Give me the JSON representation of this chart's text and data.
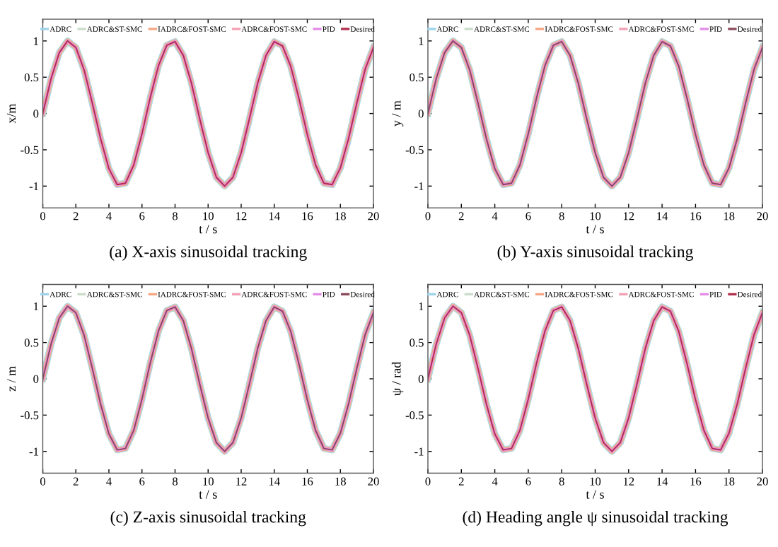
{
  "chart_data": [
    {
      "type": "line",
      "title": "(a) X-axis sinusoidal tracking",
      "xlabel": "t / s",
      "ylabel": "x/m",
      "xlim": [
        0,
        20
      ],
      "ylim": [
        -1.3,
        1.3
      ],
      "xticks": [
        0,
        2,
        4,
        6,
        8,
        10,
        12,
        14,
        16,
        18,
        20
      ],
      "yticks": [
        -1,
        -0.5,
        0,
        0.5,
        1
      ],
      "legend": "top",
      "grid": false,
      "x": [
        0,
        0.5,
        1,
        1.5,
        2,
        2.5,
        3,
        3.5,
        4,
        4.5,
        5,
        5.5,
        6,
        6.5,
        7,
        7.5,
        8,
        8.5,
        9,
        9.5,
        10,
        10.5,
        11,
        11.5,
        12,
        12.5,
        13,
        13.5,
        14,
        14.5,
        15,
        15.5,
        16,
        16.5,
        17,
        17.5,
        18,
        18.5,
        19,
        19.5,
        20
      ],
      "series": [
        {
          "name": "ADRC",
          "color": "#9fd3ea",
          "values": [
            0,
            0.48,
            0.84,
            1.0,
            0.91,
            0.6,
            0.14,
            -0.35,
            -0.76,
            -0.98,
            -0.96,
            -0.71,
            -0.28,
            0.22,
            0.66,
            0.94,
            0.99,
            0.8,
            0.41,
            -0.08,
            -0.54,
            -0.88,
            -1.0,
            -0.88,
            -0.54,
            -0.07,
            0.42,
            0.8,
            0.99,
            0.93,
            0.65,
            0.2,
            -0.29,
            -0.71,
            -0.96,
            -0.98,
            -0.75,
            -0.34,
            0.15,
            0.61,
            0.91
          ]
        },
        {
          "name": "ADRC&ST-SMC",
          "color": "#c9dcc9",
          "values": [
            0,
            0.48,
            0.84,
            1.0,
            0.91,
            0.6,
            0.14,
            -0.35,
            -0.76,
            -0.98,
            -0.96,
            -0.71,
            -0.28,
            0.22,
            0.66,
            0.94,
            0.99,
            0.8,
            0.41,
            -0.08,
            -0.54,
            -0.88,
            -1.0,
            -0.88,
            -0.54,
            -0.07,
            0.42,
            0.8,
            0.99,
            0.93,
            0.65,
            0.2,
            -0.29,
            -0.71,
            -0.96,
            -0.98,
            -0.75,
            -0.34,
            0.15,
            0.61,
            0.91
          ]
        },
        {
          "name": "IADRC&FOST-SMC",
          "color": "#f4a582",
          "values": [
            0,
            0.48,
            0.84,
            1.0,
            0.91,
            0.6,
            0.14,
            -0.35,
            -0.76,
            -0.98,
            -0.96,
            -0.71,
            -0.28,
            0.22,
            0.66,
            0.94,
            0.99,
            0.8,
            0.41,
            -0.08,
            -0.54,
            -0.88,
            -1.0,
            -0.88,
            -0.54,
            -0.07,
            0.42,
            0.8,
            0.99,
            0.93,
            0.65,
            0.2,
            -0.29,
            -0.71,
            -0.96,
            -0.98,
            -0.75,
            -0.34,
            0.15,
            0.61,
            0.91
          ]
        },
        {
          "name": "ADRC&FOST-SMC",
          "color": "#f2a0b4",
          "values": [
            0,
            0.48,
            0.84,
            1.0,
            0.91,
            0.6,
            0.14,
            -0.35,
            -0.76,
            -0.98,
            -0.96,
            -0.71,
            -0.28,
            0.22,
            0.66,
            0.94,
            0.99,
            0.8,
            0.41,
            -0.08,
            -0.54,
            -0.88,
            -1.0,
            -0.88,
            -0.54,
            -0.07,
            0.42,
            0.8,
            0.99,
            0.93,
            0.65,
            0.2,
            -0.29,
            -0.71,
            -0.96,
            -0.98,
            -0.75,
            -0.34,
            0.15,
            0.61,
            0.91
          ]
        },
        {
          "name": "PID",
          "color": "#e48be8",
          "values": [
            0,
            0.48,
            0.84,
            1.0,
            0.91,
            0.6,
            0.14,
            -0.35,
            -0.76,
            -0.98,
            -0.96,
            -0.71,
            -0.28,
            0.22,
            0.66,
            0.94,
            0.99,
            0.8,
            0.41,
            -0.08,
            -0.54,
            -0.88,
            -1.0,
            -0.88,
            -0.54,
            -0.07,
            0.42,
            0.8,
            0.99,
            0.93,
            0.65,
            0.2,
            -0.29,
            -0.71,
            -0.96,
            -0.98,
            -0.75,
            -0.34,
            0.15,
            0.61,
            0.91
          ]
        },
        {
          "name": "Desired",
          "color": "#b0304e",
          "values": [
            0,
            0.48,
            0.84,
            1.0,
            0.91,
            0.6,
            0.14,
            -0.35,
            -0.76,
            -0.98,
            -0.96,
            -0.71,
            -0.28,
            0.22,
            0.66,
            0.94,
            0.99,
            0.8,
            0.41,
            -0.08,
            -0.54,
            -0.88,
            -1.0,
            -0.88,
            -0.54,
            -0.07,
            0.42,
            0.8,
            0.99,
            0.93,
            0.65,
            0.2,
            -0.29,
            -0.71,
            -0.96,
            -0.98,
            -0.75,
            -0.34,
            0.15,
            0.61,
            0.91
          ]
        }
      ]
    },
    {
      "type": "line",
      "title": "(b) Y-axis sinusoidal tracking",
      "xlabel": "t / s",
      "ylabel": "y / m",
      "xlim": [
        0,
        20
      ],
      "ylim": [
        -1.3,
        1.3
      ],
      "xticks": [
        0,
        2,
        4,
        6,
        8,
        10,
        12,
        14,
        16,
        18,
        20
      ],
      "yticks": [
        -1,
        -0.5,
        0,
        0.5,
        1
      ],
      "legend": "top",
      "grid": false,
      "x": [
        0,
        0.5,
        1,
        1.5,
        2,
        2.5,
        3,
        3.5,
        4,
        4.5,
        5,
        5.5,
        6,
        6.5,
        7,
        7.5,
        8,
        8.5,
        9,
        9.5,
        10,
        10.5,
        11,
        11.5,
        12,
        12.5,
        13,
        13.5,
        14,
        14.5,
        15,
        15.5,
        16,
        16.5,
        17,
        17.5,
        18,
        18.5,
        19,
        19.5,
        20
      ],
      "series": [
        {
          "name": "ADRC",
          "color": "#9fd3ea",
          "values": [
            0,
            0.48,
            0.84,
            1.0,
            0.91,
            0.6,
            0.14,
            -0.35,
            -0.76,
            -0.98,
            -0.96,
            -0.71,
            -0.28,
            0.22,
            0.66,
            0.94,
            0.99,
            0.8,
            0.41,
            -0.08,
            -0.54,
            -0.88,
            -1.0,
            -0.88,
            -0.54,
            -0.07,
            0.42,
            0.8,
            0.99,
            0.93,
            0.65,
            0.2,
            -0.29,
            -0.71,
            -0.96,
            -0.98,
            -0.75,
            -0.34,
            0.15,
            0.61,
            0.91
          ]
        },
        {
          "name": "ADRC&ST-SMC",
          "color": "#c9dcc9",
          "values": [
            0,
            0.48,
            0.84,
            1.0,
            0.91,
            0.6,
            0.14,
            -0.35,
            -0.76,
            -0.98,
            -0.96,
            -0.71,
            -0.28,
            0.22,
            0.66,
            0.94,
            0.99,
            0.8,
            0.41,
            -0.08,
            -0.54,
            -0.88,
            -1.0,
            -0.88,
            -0.54,
            -0.07,
            0.42,
            0.8,
            0.99,
            0.93,
            0.65,
            0.2,
            -0.29,
            -0.71,
            -0.96,
            -0.98,
            -0.75,
            -0.34,
            0.15,
            0.61,
            0.91
          ]
        },
        {
          "name": "IADRC&FOST-SMC",
          "color": "#f4a582",
          "values": [
            0,
            0.48,
            0.84,
            1.0,
            0.91,
            0.6,
            0.14,
            -0.35,
            -0.76,
            -0.98,
            -0.96,
            -0.71,
            -0.28,
            0.22,
            0.66,
            0.94,
            0.99,
            0.8,
            0.41,
            -0.08,
            -0.54,
            -0.88,
            -1.0,
            -0.88,
            -0.54,
            -0.07,
            0.42,
            0.8,
            0.99,
            0.93,
            0.65,
            0.2,
            -0.29,
            -0.71,
            -0.96,
            -0.98,
            -0.75,
            -0.34,
            0.15,
            0.61,
            0.91
          ]
        },
        {
          "name": "ADRC&FOST-SMC",
          "color": "#f2a0b4",
          "values": [
            0,
            0.48,
            0.84,
            1.0,
            0.91,
            0.6,
            0.14,
            -0.35,
            -0.76,
            -0.98,
            -0.96,
            -0.71,
            -0.28,
            0.22,
            0.66,
            0.94,
            0.99,
            0.8,
            0.41,
            -0.08,
            -0.54,
            -0.88,
            -1.0,
            -0.88,
            -0.54,
            -0.07,
            0.42,
            0.8,
            0.99,
            0.93,
            0.65,
            0.2,
            -0.29,
            -0.71,
            -0.96,
            -0.98,
            -0.75,
            -0.34,
            0.15,
            0.61,
            0.91
          ]
        },
        {
          "name": "PID",
          "color": "#e48be8",
          "values": [
            0,
            0.48,
            0.84,
            1.0,
            0.91,
            0.6,
            0.14,
            -0.35,
            -0.76,
            -0.98,
            -0.96,
            -0.71,
            -0.28,
            0.22,
            0.66,
            0.94,
            0.99,
            0.8,
            0.41,
            -0.08,
            -0.54,
            -0.88,
            -1.0,
            -0.88,
            -0.54,
            -0.07,
            0.42,
            0.8,
            0.99,
            0.93,
            0.65,
            0.2,
            -0.29,
            -0.71,
            -0.96,
            -0.98,
            -0.75,
            -0.34,
            0.15,
            0.61,
            0.91
          ]
        },
        {
          "name": "Desired",
          "color": "#8a4a5a",
          "values": [
            0,
            0.48,
            0.84,
            1.0,
            0.91,
            0.6,
            0.14,
            -0.35,
            -0.76,
            -0.98,
            -0.96,
            -0.71,
            -0.28,
            0.22,
            0.66,
            0.94,
            0.99,
            0.8,
            0.41,
            -0.08,
            -0.54,
            -0.88,
            -1.0,
            -0.88,
            -0.54,
            -0.07,
            0.42,
            0.8,
            0.99,
            0.93,
            0.65,
            0.2,
            -0.29,
            -0.71,
            -0.96,
            -0.98,
            -0.75,
            -0.34,
            0.15,
            0.61,
            0.91
          ]
        }
      ]
    },
    {
      "type": "line",
      "title": "(c) Z-axis sinusoidal tracking",
      "xlabel": "t / s",
      "ylabel": "z / m",
      "xlim": [
        0,
        20
      ],
      "ylim": [
        -1.3,
        1.3
      ],
      "xticks": [
        0,
        2,
        4,
        6,
        8,
        10,
        12,
        14,
        16,
        18,
        20
      ],
      "yticks": [
        -1,
        -0.5,
        0,
        0.5,
        1
      ],
      "legend": "top",
      "grid": false,
      "x": [
        0,
        0.5,
        1,
        1.5,
        2,
        2.5,
        3,
        3.5,
        4,
        4.5,
        5,
        5.5,
        6,
        6.5,
        7,
        7.5,
        8,
        8.5,
        9,
        9.5,
        10,
        10.5,
        11,
        11.5,
        12,
        12.5,
        13,
        13.5,
        14,
        14.5,
        15,
        15.5,
        16,
        16.5,
        17,
        17.5,
        18,
        18.5,
        19,
        19.5,
        20
      ],
      "series": [
        {
          "name": "ADRC",
          "color": "#9fd3ea",
          "values": [
            0,
            0.48,
            0.84,
            1.0,
            0.91,
            0.6,
            0.14,
            -0.35,
            -0.76,
            -0.98,
            -0.96,
            -0.71,
            -0.28,
            0.22,
            0.66,
            0.94,
            0.99,
            0.8,
            0.41,
            -0.08,
            -0.54,
            -0.88,
            -1.0,
            -0.88,
            -0.54,
            -0.07,
            0.42,
            0.8,
            0.99,
            0.93,
            0.65,
            0.2,
            -0.29,
            -0.71,
            -0.96,
            -0.98,
            -0.75,
            -0.34,
            0.15,
            0.61,
            0.91
          ]
        },
        {
          "name": "ADRC&ST-SMC",
          "color": "#c9dcc9",
          "values": [
            0,
            0.48,
            0.84,
            1.0,
            0.91,
            0.6,
            0.14,
            -0.35,
            -0.76,
            -0.98,
            -0.96,
            -0.71,
            -0.28,
            0.22,
            0.66,
            0.94,
            0.99,
            0.8,
            0.41,
            -0.08,
            -0.54,
            -0.88,
            -1.0,
            -0.88,
            -0.54,
            -0.07,
            0.42,
            0.8,
            0.99,
            0.93,
            0.65,
            0.2,
            -0.29,
            -0.71,
            -0.96,
            -0.98,
            -0.75,
            -0.34,
            0.15,
            0.61,
            0.91
          ]
        },
        {
          "name": "IADRC&FOST-SMC",
          "color": "#f4a582",
          "values": [
            0,
            0.48,
            0.84,
            1.0,
            0.91,
            0.6,
            0.14,
            -0.35,
            -0.76,
            -0.98,
            -0.96,
            -0.71,
            -0.28,
            0.22,
            0.66,
            0.94,
            0.99,
            0.8,
            0.41,
            -0.08,
            -0.54,
            -0.88,
            -1.0,
            -0.88,
            -0.54,
            -0.07,
            0.42,
            0.8,
            0.99,
            0.93,
            0.65,
            0.2,
            -0.29,
            -0.71,
            -0.96,
            -0.98,
            -0.75,
            -0.34,
            0.15,
            0.61,
            0.91
          ]
        },
        {
          "name": "ADRC&FOST-SMC",
          "color": "#f2a0b4",
          "values": [
            0,
            0.48,
            0.84,
            1.0,
            0.91,
            0.6,
            0.14,
            -0.35,
            -0.76,
            -0.98,
            -0.96,
            -0.71,
            -0.28,
            0.22,
            0.66,
            0.94,
            0.99,
            0.8,
            0.41,
            -0.08,
            -0.54,
            -0.88,
            -1.0,
            -0.88,
            -0.54,
            -0.07,
            0.42,
            0.8,
            0.99,
            0.93,
            0.65,
            0.2,
            -0.29,
            -0.71,
            -0.96,
            -0.98,
            -0.75,
            -0.34,
            0.15,
            0.61,
            0.91
          ]
        },
        {
          "name": "PID",
          "color": "#e48be8",
          "values": [
            0,
            0.48,
            0.84,
            1.0,
            0.91,
            0.6,
            0.14,
            -0.35,
            -0.76,
            -0.98,
            -0.96,
            -0.71,
            -0.28,
            0.22,
            0.66,
            0.94,
            0.99,
            0.8,
            0.41,
            -0.08,
            -0.54,
            -0.88,
            -1.0,
            -0.88,
            -0.54,
            -0.07,
            0.42,
            0.8,
            0.99,
            0.93,
            0.65,
            0.2,
            -0.29,
            -0.71,
            -0.96,
            -0.98,
            -0.75,
            -0.34,
            0.15,
            0.61,
            0.91
          ]
        },
        {
          "name": "Desired",
          "color": "#8a4a5a",
          "values": [
            0,
            0.48,
            0.84,
            1.0,
            0.91,
            0.6,
            0.14,
            -0.35,
            -0.76,
            -0.98,
            -0.96,
            -0.71,
            -0.28,
            0.22,
            0.66,
            0.94,
            0.99,
            0.8,
            0.41,
            -0.08,
            -0.54,
            -0.88,
            -1.0,
            -0.88,
            -0.54,
            -0.07,
            0.42,
            0.8,
            0.99,
            0.93,
            0.65,
            0.2,
            -0.29,
            -0.71,
            -0.96,
            -0.98,
            -0.75,
            -0.34,
            0.15,
            0.61,
            0.91
          ]
        }
      ]
    },
    {
      "type": "line",
      "title": "(d) Heading angle ψ sinusoidal tracking",
      "xlabel": "t / s",
      "ylabel": "ψ / rad",
      "xlim": [
        0,
        20
      ],
      "ylim": [
        -1.3,
        1.3
      ],
      "xticks": [
        0,
        2,
        4,
        6,
        8,
        10,
        12,
        14,
        16,
        18,
        20
      ],
      "yticks": [
        -1,
        -0.5,
        0,
        0.5,
        1
      ],
      "legend": "top",
      "grid": false,
      "x": [
        0,
        0.5,
        1,
        1.5,
        2,
        2.5,
        3,
        3.5,
        4,
        4.5,
        5,
        5.5,
        6,
        6.5,
        7,
        7.5,
        8,
        8.5,
        9,
        9.5,
        10,
        10.5,
        11,
        11.5,
        12,
        12.5,
        13,
        13.5,
        14,
        14.5,
        15,
        15.5,
        16,
        16.5,
        17,
        17.5,
        18,
        18.5,
        19,
        19.5,
        20
      ],
      "series": [
        {
          "name": "ADRC",
          "color": "#9fd3ea",
          "values": [
            0,
            0.48,
            0.84,
            1.0,
            0.91,
            0.6,
            0.14,
            -0.35,
            -0.76,
            -0.98,
            -0.96,
            -0.71,
            -0.28,
            0.22,
            0.66,
            0.94,
            0.99,
            0.8,
            0.41,
            -0.08,
            -0.54,
            -0.88,
            -1.0,
            -0.88,
            -0.54,
            -0.07,
            0.42,
            0.8,
            0.99,
            0.93,
            0.65,
            0.2,
            -0.29,
            -0.71,
            -0.96,
            -0.98,
            -0.75,
            -0.34,
            0.15,
            0.61,
            0.91
          ]
        },
        {
          "name": "ADRC&ST-SMC",
          "color": "#c9dcc9",
          "values": [
            0,
            0.48,
            0.84,
            1.0,
            0.91,
            0.6,
            0.14,
            -0.35,
            -0.76,
            -0.98,
            -0.96,
            -0.71,
            -0.28,
            0.22,
            0.66,
            0.94,
            0.99,
            0.8,
            0.41,
            -0.08,
            -0.54,
            -0.88,
            -1.0,
            -0.88,
            -0.54,
            -0.07,
            0.42,
            0.8,
            0.99,
            0.93,
            0.65,
            0.2,
            -0.29,
            -0.71,
            -0.96,
            -0.98,
            -0.75,
            -0.34,
            0.15,
            0.61,
            0.91
          ]
        },
        {
          "name": "IADRC&FOST-SMC",
          "color": "#f4a582",
          "values": [
            0,
            0.48,
            0.84,
            1.0,
            0.91,
            0.6,
            0.14,
            -0.35,
            -0.76,
            -0.98,
            -0.96,
            -0.71,
            -0.28,
            0.22,
            0.66,
            0.94,
            0.99,
            0.8,
            0.41,
            -0.08,
            -0.54,
            -0.88,
            -1.0,
            -0.88,
            -0.54,
            -0.07,
            0.42,
            0.8,
            0.99,
            0.93,
            0.65,
            0.2,
            -0.29,
            -0.71,
            -0.96,
            -0.98,
            -0.75,
            -0.34,
            0.15,
            0.61,
            0.91
          ]
        },
        {
          "name": "ADRC&FOST-SMC",
          "color": "#f2a0b4",
          "values": [
            0,
            0.48,
            0.84,
            1.0,
            0.91,
            0.6,
            0.14,
            -0.35,
            -0.76,
            -0.98,
            -0.96,
            -0.71,
            -0.28,
            0.22,
            0.66,
            0.94,
            0.99,
            0.8,
            0.41,
            -0.08,
            -0.54,
            -0.88,
            -1.0,
            -0.88,
            -0.54,
            -0.07,
            0.42,
            0.8,
            0.99,
            0.93,
            0.65,
            0.2,
            -0.29,
            -0.71,
            -0.96,
            -0.98,
            -0.75,
            -0.34,
            0.15,
            0.61,
            0.91
          ]
        },
        {
          "name": "PID",
          "color": "#e48be8",
          "values": [
            0,
            0.48,
            0.84,
            1.0,
            0.91,
            0.6,
            0.14,
            -0.35,
            -0.76,
            -0.98,
            -0.96,
            -0.71,
            -0.28,
            0.22,
            0.66,
            0.94,
            0.99,
            0.8,
            0.41,
            -0.08,
            -0.54,
            -0.88,
            -1.0,
            -0.88,
            -0.54,
            -0.07,
            0.42,
            0.8,
            0.99,
            0.93,
            0.65,
            0.2,
            -0.29,
            -0.71,
            -0.96,
            -0.98,
            -0.75,
            -0.34,
            0.15,
            0.61,
            0.91
          ]
        },
        {
          "name": "Desired",
          "color": "#b0304e",
          "values": [
            0,
            0.48,
            0.84,
            1.0,
            0.91,
            0.6,
            0.14,
            -0.35,
            -0.76,
            -0.98,
            -0.96,
            -0.71,
            -0.28,
            0.22,
            0.66,
            0.94,
            0.99,
            0.8,
            0.41,
            -0.08,
            -0.54,
            -0.88,
            -1.0,
            -0.88,
            -0.54,
            -0.07,
            0.42,
            0.8,
            0.99,
            0.93,
            0.65,
            0.2,
            -0.29,
            -0.71,
            -0.96,
            -0.98,
            -0.75,
            -0.34,
            0.15,
            0.61,
            0.91
          ]
        }
      ]
    }
  ]
}
